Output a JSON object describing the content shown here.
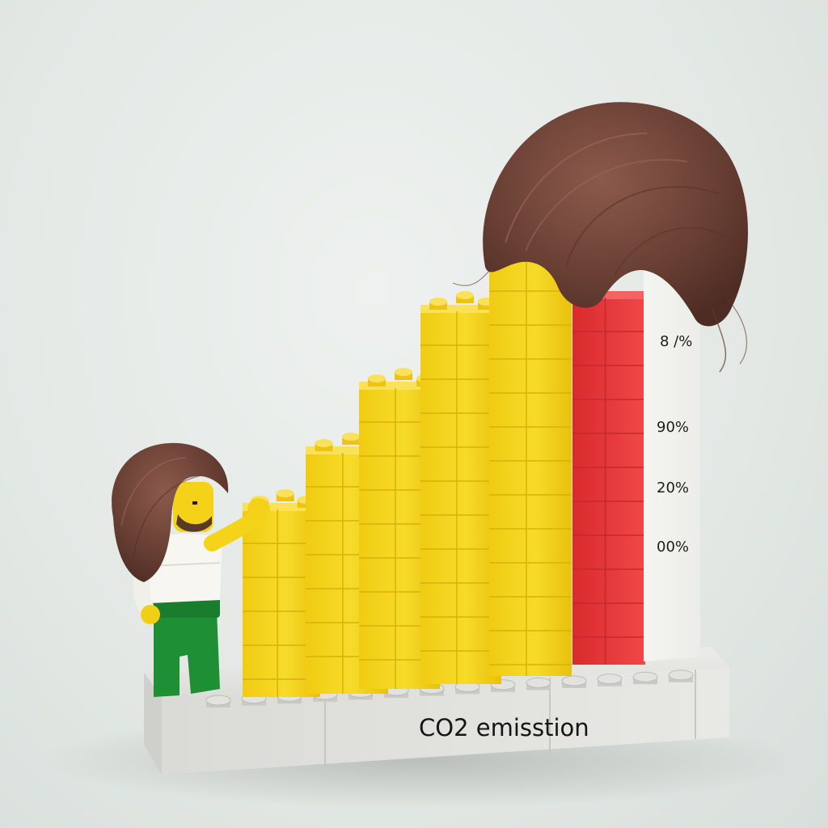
{
  "caption": "CO2 emisstion",
  "scale_labels": [
    "8 /%",
    "90%",
    "20%",
    "00%"
  ],
  "colors": {
    "background": "#e6eae7",
    "yellow_brick": "#f3d31c",
    "red_brick": "#ee3a3a",
    "base_plate": "#e4e4e2",
    "hair": "#6e4438",
    "minifig_torso": "#f7f6f0",
    "minifig_legs": "#1e8f34"
  },
  "bars": [
    {
      "color": "yellow",
      "level": 1
    },
    {
      "color": "yellow",
      "level": 2
    },
    {
      "color": "yellow",
      "level": 3
    },
    {
      "color": "yellow",
      "level": 4
    },
    {
      "color": "yellow",
      "level": 5
    },
    {
      "color": "red",
      "level": 6
    }
  ],
  "objects": {
    "minifigure": "lego-minifigure-with-brown-hair",
    "hair_on_top": "brown-hair-wig"
  }
}
